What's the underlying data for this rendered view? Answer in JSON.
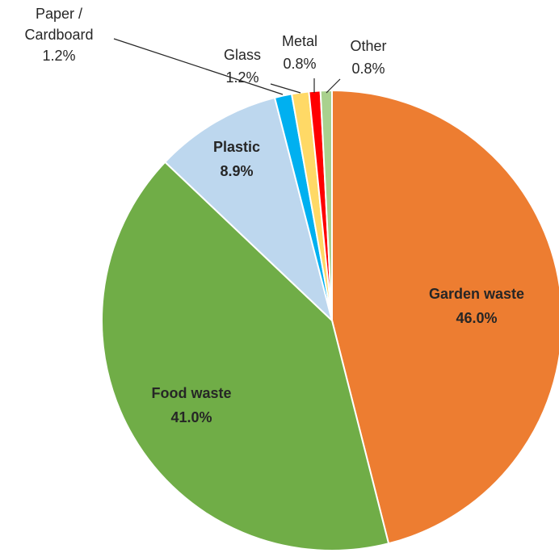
{
  "chart_data": {
    "type": "pie",
    "start_angle_deg": 0,
    "direction": "clockwise",
    "slices": [
      {
        "name": "Garden waste",
        "value": 46.0,
        "pct_label": "46.0%",
        "color": "#ED7D31",
        "label_pos": "inside",
        "bold": true
      },
      {
        "name": "Food waste",
        "value": 41.0,
        "pct_label": "41.0%",
        "color": "#70AD47",
        "label_pos": "inside",
        "bold": true
      },
      {
        "name": "Plastic",
        "value": 8.9,
        "pct_label": "8.9%",
        "color": "#BDD7EE",
        "label_pos": "inside",
        "bold": true
      },
      {
        "name": "Paper / Cardboard",
        "name_lines": [
          "Paper /",
          "Cardboard"
        ],
        "value": 1.2,
        "pct_label": "1.2%",
        "color": "#00B0F0",
        "label_pos": "outside",
        "bold": false
      },
      {
        "name": "Glass",
        "value": 1.2,
        "pct_label": "1.2%",
        "color": "#FFD966",
        "label_pos": "outside",
        "bold": false
      },
      {
        "name": "Metal",
        "value": 0.8,
        "pct_label": "0.8%",
        "color": "#FF0000",
        "label_pos": "outside",
        "bold": false
      },
      {
        "name": "Other",
        "value": 0.8,
        "pct_label": "0.8%",
        "color": "#A9D18E",
        "label_pos": "outside",
        "bold": false
      }
    ],
    "legend": "none",
    "title": ""
  }
}
